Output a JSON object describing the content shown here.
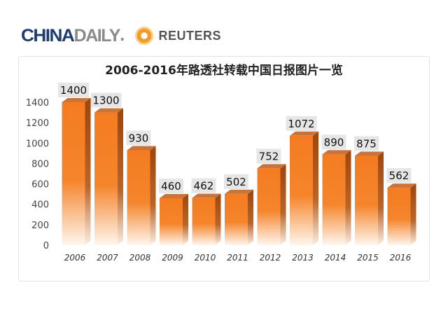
{
  "header": {
    "logo_left_part1": "CHINA",
    "logo_left_part2": "DAILY",
    "logo_dot": ".",
    "logo_right": "REUTERS"
  },
  "colors": {
    "bar_front": "#f47b20",
    "bar_side": "#a24a0c",
    "bar_top": "#c9743a",
    "label_bg": "#e6e6e6",
    "navy": "#1c3d6e"
  },
  "chart_data": {
    "type": "bar",
    "title": "2006-2016年路透社转载中国日报图片一览",
    "xlabel": "",
    "ylabel": "",
    "categories": [
      "2006",
      "2007",
      "2008",
      "2009",
      "2010",
      "2011",
      "2012",
      "2013",
      "2014",
      "2015",
      "2016"
    ],
    "values": [
      1400,
      1300,
      930,
      460,
      462,
      502,
      752,
      1072,
      890,
      875,
      562
    ],
    "yticks": [
      0,
      200,
      400,
      600,
      800,
      1000,
      1200,
      1400
    ],
    "ylim": [
      0,
      1400
    ],
    "grid": false,
    "legend": "none"
  }
}
